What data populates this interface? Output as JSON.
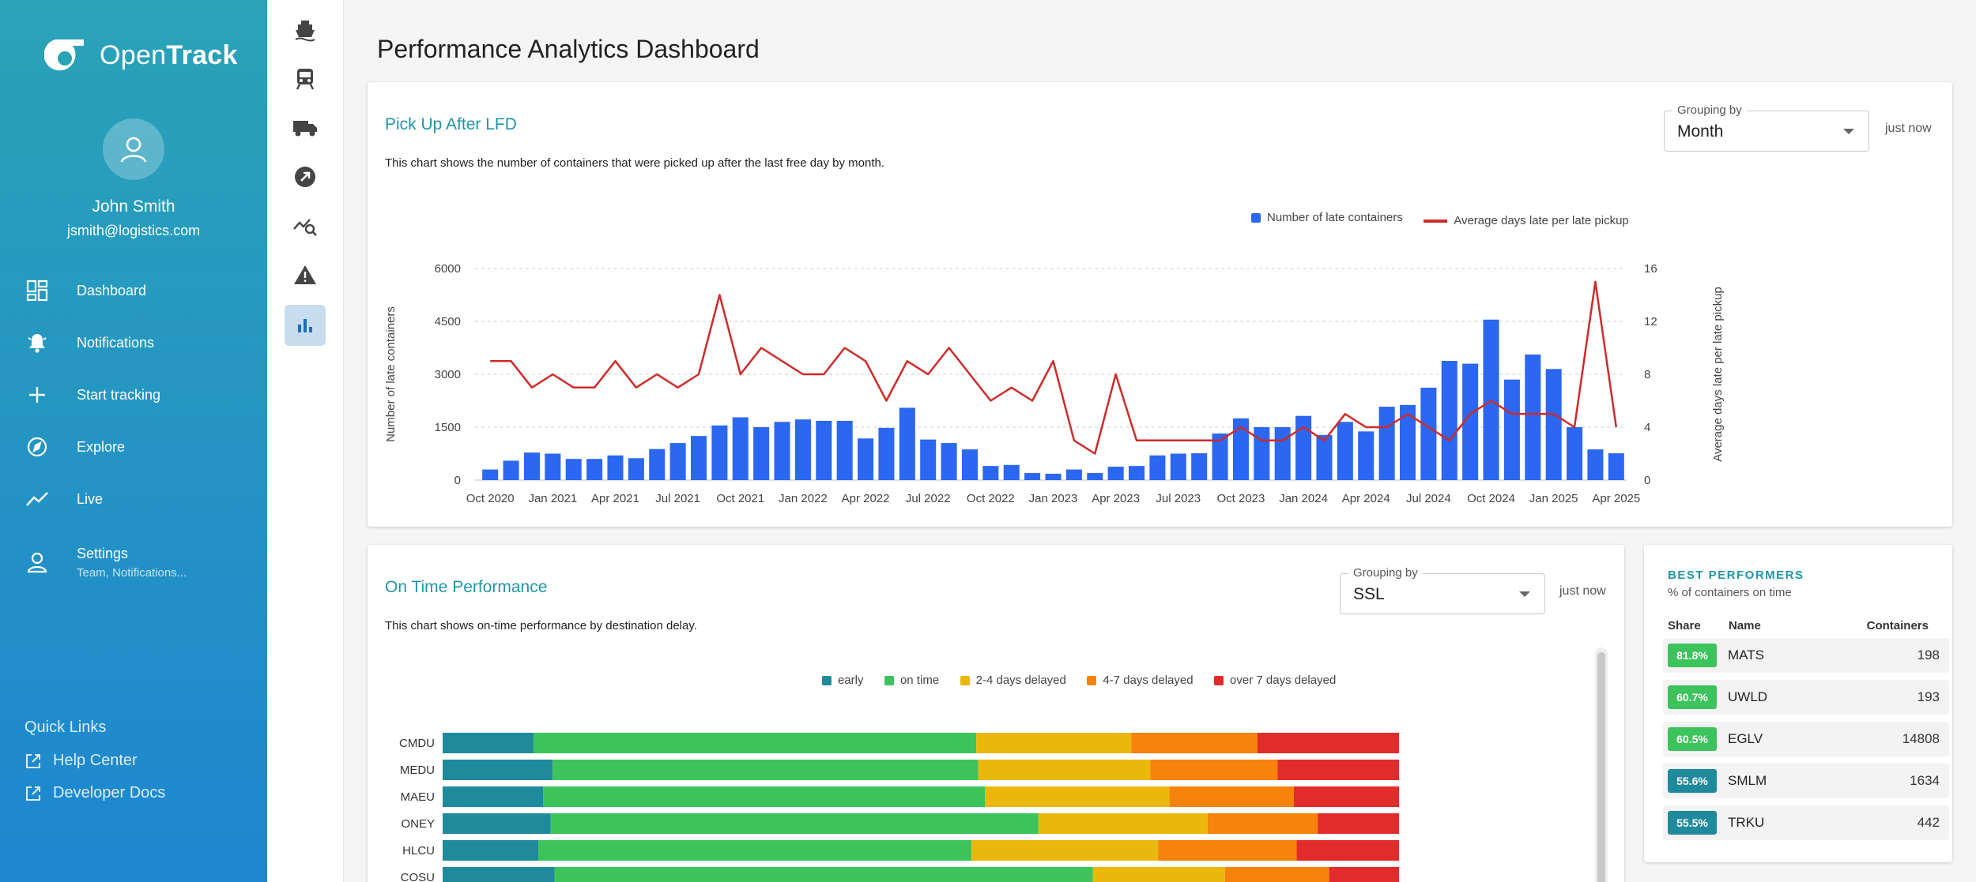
{
  "app": {
    "brand_open": "Open",
    "brand_track": "Track"
  },
  "user": {
    "name": "John Smith",
    "email": "jsmith@logistics.com"
  },
  "nav": [
    {
      "label": "Dashboard",
      "icon": "dashboard-icon"
    },
    {
      "label": "Notifications",
      "icon": "bell-icon"
    },
    {
      "label": "Start tracking",
      "icon": "plus-icon"
    },
    {
      "label": "Explore",
      "icon": "compass-icon"
    },
    {
      "label": "Live",
      "icon": "trend-icon"
    },
    {
      "label": "Settings",
      "sub": "Team, Notifications...",
      "icon": "person-icon"
    }
  ],
  "quick_links": {
    "title": "Quick Links",
    "items": [
      "Help Center",
      "Developer Docs"
    ]
  },
  "rail": [
    "ship-icon",
    "train-icon",
    "truck-icon",
    "arrow-circle-icon",
    "analytics-search-icon",
    "warning-icon",
    "bar-chart-icon"
  ],
  "page": {
    "title": "Performance Analytics Dashboard"
  },
  "lfd_card": {
    "title": "Pick Up After LFD",
    "description": "This chart shows the number of containers that were picked up after the last free day by month.",
    "grouping_label": "Grouping by",
    "grouping_value": "Month",
    "updated": "just now"
  },
  "otp_card": {
    "title": "On Time Performance",
    "description": "This chart shows on-time performance by destination delay.",
    "grouping_label": "Grouping by",
    "grouping_value": "SSL",
    "updated": "just now"
  },
  "best": {
    "title": "BEST PERFORMERS",
    "subtitle": "% of containers on time",
    "headers": {
      "share": "Share",
      "name": "Name",
      "containers": "Containers"
    },
    "rows": [
      {
        "share": "81.8%",
        "name": "MATS",
        "containers": "198",
        "color": "#3cc35c"
      },
      {
        "share": "60.7%",
        "name": "UWLD",
        "containers": "193",
        "color": "#3cc35c"
      },
      {
        "share": "60.5%",
        "name": "EGLV",
        "containers": "14808",
        "color": "#3cc35c"
      },
      {
        "share": "55.6%",
        "name": "SMLM",
        "containers": "1634",
        "color": "#1f8a9c"
      },
      {
        "share": "55.5%",
        "name": "TRKU",
        "containers": "442",
        "color": "#1f8a9c"
      }
    ]
  },
  "chart_data": [
    {
      "type": "bar",
      "combo": "bar+line",
      "x_ticks": [
        "Oct 2020",
        "Jan 2021",
        "Apr 2021",
        "Jul 2021",
        "Oct 2021",
        "Jan 2022",
        "Apr 2022",
        "Jul 2022",
        "Oct 2022",
        "Jan 2023",
        "Apr 2023",
        "Jul 2023",
        "Oct 2023",
        "Jan 2024",
        "Apr 2024",
        "Jul 2024",
        "Oct 2024",
        "Jan 2025",
        "Apr 2025"
      ],
      "ylabel": "Number of late containers",
      "y2label": "Average days late per late pickup",
      "ylim": [
        0,
        6000
      ],
      "y_ticks": [
        0,
        1500,
        3000,
        4500,
        6000
      ],
      "y2lim": [
        0,
        16
      ],
      "y2_ticks": [
        0,
        4,
        8,
        12,
        16
      ],
      "grid": true,
      "legend_position": "top-right",
      "series": [
        {
          "name": "Number of late containers",
          "kind": "bar",
          "color": "#2b67f0",
          "values": [
            300,
            550,
            780,
            750,
            600,
            600,
            700,
            620,
            880,
            1050,
            1250,
            1550,
            1780,
            1500,
            1650,
            1720,
            1680,
            1680,
            1180,
            1480,
            2050,
            1150,
            1050,
            870,
            400,
            430,
            200,
            180,
            300,
            200,
            380,
            400,
            700,
            750,
            760,
            1320,
            1750,
            1500,
            1500,
            1820,
            1280,
            1650,
            1380,
            2080,
            2130,
            2620,
            3380,
            3300,
            4550,
            2850,
            3560,
            3150,
            1500,
            870,
            760
          ]
        },
        {
          "name": "Average days late per late pickup",
          "kind": "line",
          "color": "#cf2a2a",
          "values": [
            9,
            9,
            7,
            8,
            7,
            7,
            9,
            7,
            8,
            7,
            8,
            14,
            8,
            10,
            9,
            8,
            8,
            10,
            9,
            6,
            9,
            8,
            10,
            8,
            6,
            7,
            6,
            9,
            3,
            2,
            8,
            3,
            3,
            3,
            3,
            3,
            4,
            3,
            3,
            4,
            3,
            5,
            4,
            4,
            5,
            4,
            3,
            5,
            6,
            5,
            5,
            5,
            4,
            15,
            4
          ]
        }
      ]
    },
    {
      "type": "bar",
      "orientation": "horizontal",
      "stacked": true,
      "percent": true,
      "categories": [
        "CMDU",
        "MEDU",
        "MAEU",
        "ONEY",
        "HLCU",
        "COSU"
      ],
      "legend_position": "top-center",
      "series": [
        {
          "name": "early",
          "color": "#1f8a9c",
          "values": [
            9.5,
            11.5,
            10.5,
            11.3,
            10,
            11.7
          ]
        },
        {
          "name": "on time",
          "color": "#3cc35c",
          "values": [
            46.3,
            44.5,
            46.2,
            51,
            45.3,
            56.3
          ]
        },
        {
          "name": "2-4 days delayed",
          "color": "#eab80c",
          "values": [
            16.2,
            18,
            19.3,
            17.7,
            19.5,
            13.8
          ]
        },
        {
          "name": "4-7 days delayed",
          "color": "#f7820c",
          "values": [
            13.2,
            13.3,
            13,
            11.5,
            14.5,
            10.9
          ]
        },
        {
          "name": "over 7 days delayed",
          "color": "#e22b2b",
          "values": [
            14.8,
            12.7,
            11,
            8.5,
            10.7,
            7.3
          ]
        }
      ]
    }
  ]
}
